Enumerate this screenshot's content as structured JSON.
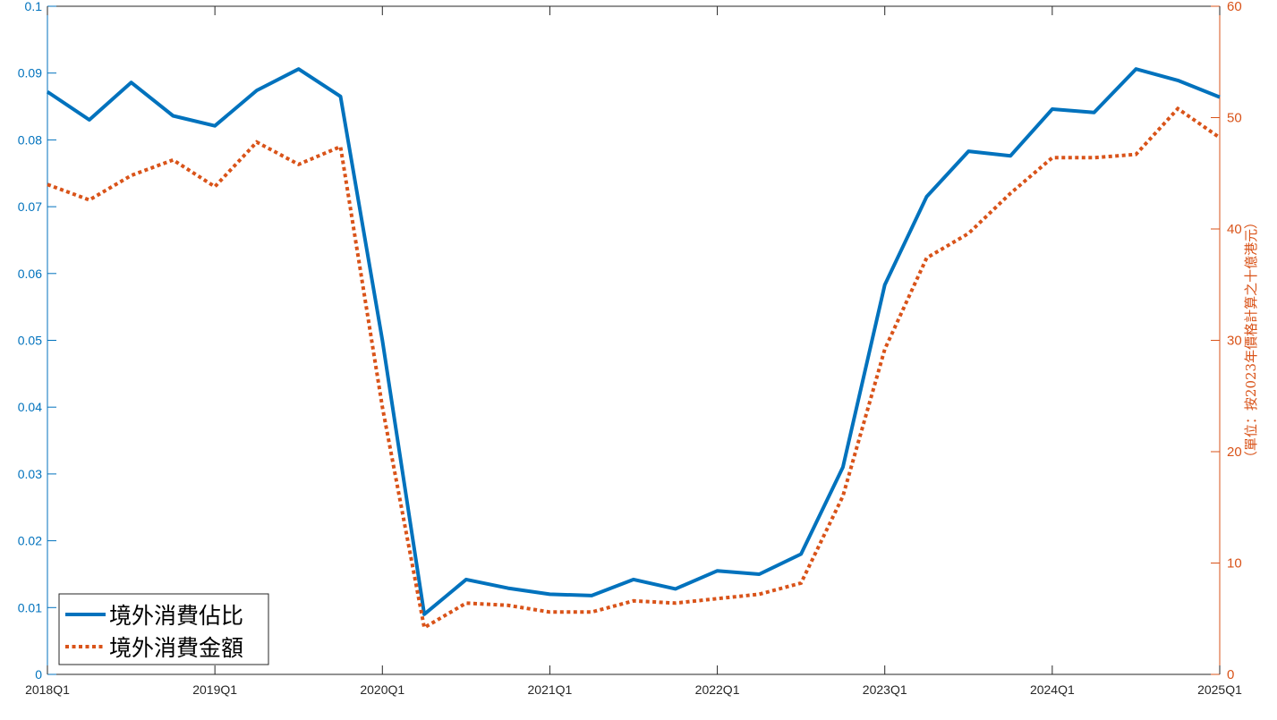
{
  "chart_data": {
    "type": "line",
    "title": "",
    "x": [
      "2018Q1",
      "2018Q2",
      "2018Q3",
      "2018Q4",
      "2019Q1",
      "2019Q2",
      "2019Q3",
      "2019Q4",
      "2020Q1",
      "2020Q2",
      "2020Q3",
      "2020Q4",
      "2021Q1",
      "2021Q2",
      "2021Q3",
      "2021Q4",
      "2022Q1",
      "2022Q2",
      "2022Q3",
      "2022Q4",
      "2023Q1",
      "2023Q2",
      "2023Q3",
      "2023Q4",
      "2024Q1",
      "2024Q2",
      "2024Q3",
      "2024Q4",
      "2025Q1"
    ],
    "x_tick_labels": [
      "2018Q1",
      "2019Q1",
      "2020Q1",
      "2021Q1",
      "2022Q1",
      "2023Q1",
      "2024Q1",
      "2025Q1"
    ],
    "xlabel": "",
    "ylabel_left": "",
    "ylabel_right": "（單位：按2023年價格計算之十億港元）",
    "ylim_left": [
      0,
      0.1
    ],
    "ylim_right": [
      0,
      60
    ],
    "yticks_left": [
      "0",
      "0.01",
      "0.02",
      "0.03",
      "0.04",
      "0.05",
      "0.06",
      "0.07",
      "0.08",
      "0.09",
      "0.1"
    ],
    "yticks_right": [
      "0",
      "10",
      "20",
      "30",
      "40",
      "50",
      "60"
    ],
    "grid": false,
    "legend_position": "bottom-left",
    "series": [
      {
        "name": "境外消費佔比",
        "axis": "left",
        "color": "#0072BD",
        "style": "solid",
        "values": [
          0.0872,
          0.083,
          0.0886,
          0.0836,
          0.0821,
          0.0874,
          0.0906,
          0.0865,
          0.05,
          0.009,
          0.0142,
          0.0129,
          0.012,
          0.0118,
          0.0142,
          0.0128,
          0.0155,
          0.015,
          0.018,
          0.031,
          0.0583,
          0.0715,
          0.0783,
          0.0776,
          0.0846,
          0.0841,
          0.0906,
          0.0889,
          0.0864
        ]
      },
      {
        "name": "境外消費金額",
        "axis": "right",
        "color": "#D95319",
        "style": "dotted",
        "values": [
          44.0,
          42.6,
          44.8,
          46.2,
          43.8,
          47.8,
          45.8,
          47.4,
          24.0,
          4.2,
          6.4,
          6.2,
          5.6,
          5.6,
          6.6,
          6.4,
          6.8,
          7.2,
          8.2,
          16.0,
          29.2,
          37.4,
          39.6,
          43.2,
          46.4,
          46.4,
          46.7,
          50.8,
          48.2
        ]
      }
    ]
  }
}
